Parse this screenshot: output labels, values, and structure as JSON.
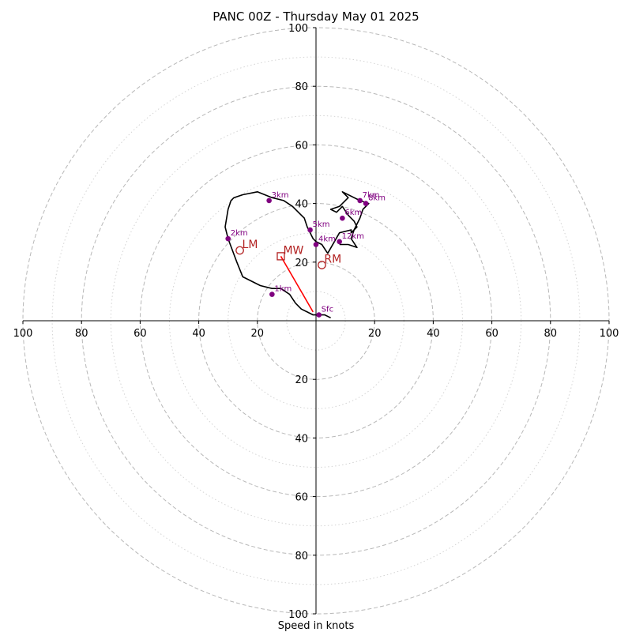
{
  "chart_data": {
    "type": "hodograph",
    "title": "PANC 00Z - Thursday May 01 2025",
    "xlabel": "Speed in knots",
    "range": [
      -100,
      100
    ],
    "tick_labels": [
      "100",
      "80",
      "60",
      "40",
      "20",
      "20",
      "40",
      "60",
      "80",
      "100"
    ],
    "y_tick_labels": [
      "100",
      "80",
      "60",
      "40",
      "20",
      "20",
      "40",
      "60",
      "80",
      "100"
    ],
    "rings_dashed": [
      20,
      40,
      60,
      80,
      100
    ],
    "rings_dotted": [
      10,
      30,
      50,
      70,
      90
    ],
    "wind_profile": {
      "color": "#000000",
      "u": [
        5,
        3,
        1,
        -1,
        -3,
        -5,
        -7,
        -9,
        -12,
        -15,
        -19,
        -25,
        -27,
        -30,
        -31,
        -30,
        -29,
        -28,
        -25,
        -20,
        -15,
        -11,
        -8,
        -6,
        -4,
        -3,
        -2,
        -1,
        0,
        2,
        4,
        8,
        12,
        12,
        14,
        13,
        11,
        9,
        7,
        5,
        8,
        11,
        9,
        15,
        18,
        16,
        15,
        13,
        12,
        14,
        11,
        8
      ],
      "v": [
        1,
        2,
        2,
        2,
        3,
        4,
        6,
        9,
        11,
        11,
        12,
        15,
        20,
        28,
        32,
        38,
        41,
        42,
        43,
        44,
        42,
        41,
        39,
        37,
        35,
        32,
        30,
        28,
        27,
        26,
        23,
        30,
        31,
        30,
        32,
        34,
        36,
        39,
        37,
        38,
        39,
        42,
        44,
        41,
        40,
        38,
        35,
        31,
        28,
        25,
        26,
        26
      ]
    },
    "height_markers": {
      "color": "#800080",
      "points": [
        {
          "label": "Sfc",
          "u": 1,
          "v": 2
        },
        {
          "label": "1km",
          "u": -15,
          "v": 9
        },
        {
          "label": "2km",
          "u": -30,
          "v": 28
        },
        {
          "label": "3km",
          "u": -16,
          "v": 41
        },
        {
          "label": "4km",
          "u": 0,
          "v": 26
        },
        {
          "label": "5km",
          "u": -2,
          "v": 31
        },
        {
          "label": "6km",
          "u": 9,
          "v": 35
        },
        {
          "label": "7km",
          "u": 15,
          "v": 41
        },
        {
          "label": "8km",
          "u": 17,
          "v": 40
        },
        {
          "label": "12km",
          "u": 8,
          "v": 27
        }
      ]
    },
    "storm_motion": {
      "color": "#b22222",
      "mean_wind": {
        "label": "MW",
        "u": -12,
        "v": 22,
        "marker": "square"
      },
      "right_mover": {
        "label": "RM",
        "u": 2,
        "v": 19,
        "marker": "circle"
      },
      "left_mover": {
        "label": "LM",
        "u": -26,
        "v": 24,
        "marker": "circle"
      }
    },
    "shear_vector": {
      "color": "#ff0000",
      "from": {
        "u": -1,
        "v": 3
      },
      "to": {
        "u": -12,
        "v": 22
      }
    }
  }
}
